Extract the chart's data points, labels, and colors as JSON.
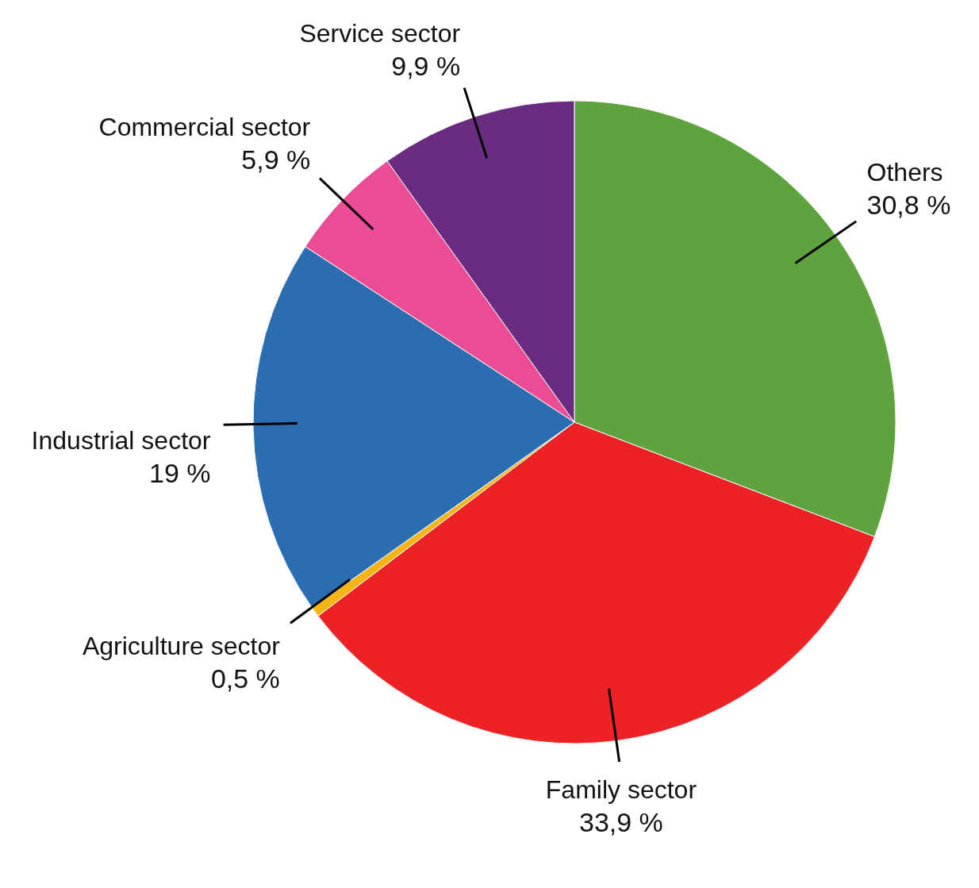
{
  "chart_data": {
    "type": "pie",
    "categories": [
      "Others",
      "Family sector",
      "Agriculture sector",
      "Industrial sector",
      "Commercial sector",
      "Service sector"
    ],
    "values": [
      30.8,
      33.9,
      0.5,
      19,
      5.9,
      9.9
    ],
    "colors": [
      "#5fa33f",
      "#ec2227",
      "#f7b515",
      "#2a6db0",
      "#ec4c94",
      "#6a2c80"
    ],
    "value_labels": [
      "30,8 %",
      "33,9 %",
      "0,5 %",
      "19 %",
      "5,9 %",
      "9,9 %"
    ]
  }
}
